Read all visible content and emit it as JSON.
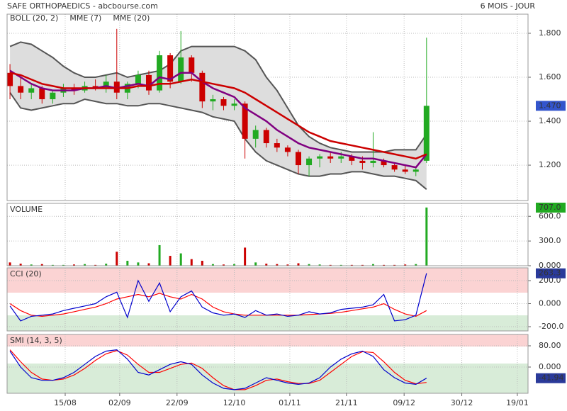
{
  "title": "SAFE ORTHOPAEDICS - abcbourse.com",
  "period": "6 MOIS - JOUR",
  "chart_data": [
    {
      "type": "candlestick",
      "up_color": "#22aa22",
      "down_color": "#cc0000",
      "open": [
        1.62,
        1.56,
        1.53,
        1.55,
        1.5,
        1.53,
        1.55,
        1.54,
        1.56,
        1.55,
        1.58,
        1.53,
        1.57,
        1.61,
        1.54,
        1.7,
        1.58,
        1.69,
        1.62,
        1.49,
        1.5,
        1.47,
        1.48,
        1.32,
        1.36,
        1.3,
        1.28,
        1.26,
        1.2,
        1.23,
        1.24,
        1.23,
        1.24,
        1.22,
        1.21,
        1.22,
        1.2,
        1.18,
        1.17,
        1.22
      ],
      "high": [
        1.66,
        1.6,
        1.57,
        1.56,
        1.54,
        1.57,
        1.57,
        1.58,
        1.59,
        1.61,
        1.82,
        1.58,
        1.63,
        1.63,
        1.72,
        1.71,
        1.81,
        1.7,
        1.63,
        1.52,
        1.51,
        1.5,
        1.49,
        1.38,
        1.37,
        1.32,
        1.29,
        1.27,
        1.24,
        1.25,
        1.26,
        1.26,
        1.25,
        1.24,
        1.35,
        1.23,
        1.21,
        1.2,
        1.19,
        1.78
      ],
      "low": [
        1.5,
        1.5,
        1.5,
        1.48,
        1.48,
        1.51,
        1.52,
        1.53,
        1.54,
        1.53,
        1.5,
        1.5,
        1.55,
        1.52,
        1.53,
        1.55,
        1.57,
        1.58,
        1.46,
        1.45,
        1.45,
        1.45,
        1.23,
        1.28,
        1.28,
        1.26,
        1.24,
        1.16,
        1.15,
        1.19,
        1.21,
        1.21,
        1.2,
        1.18,
        1.19,
        1.19,
        1.17,
        1.16,
        1.15,
        1.21
      ],
      "close": [
        1.56,
        1.53,
        1.55,
        1.5,
        1.53,
        1.55,
        1.54,
        1.56,
        1.55,
        1.58,
        1.53,
        1.57,
        1.61,
        1.54,
        1.7,
        1.58,
        1.69,
        1.62,
        1.49,
        1.5,
        1.47,
        1.48,
        1.32,
        1.36,
        1.3,
        1.28,
        1.26,
        1.2,
        1.23,
        1.24,
        1.23,
        1.24,
        1.22,
        1.21,
        1.22,
        1.2,
        1.18,
        1.17,
        1.18,
        1.47
      ],
      "close_label": "1.470",
      "series": [
        {
          "name": "BOLL (20, 2)",
          "color": "#555555",
          "fill": "#dddddd",
          "upper": [
            1.74,
            1.76,
            1.75,
            1.72,
            1.69,
            1.65,
            1.62,
            1.6,
            1.6,
            1.61,
            1.62,
            1.6,
            1.61,
            1.62,
            1.63,
            1.66,
            1.72,
            1.74,
            1.74,
            1.74,
            1.74,
            1.74,
            1.72,
            1.68,
            1.6,
            1.54,
            1.46,
            1.38,
            1.33,
            1.3,
            1.28,
            1.27,
            1.26,
            1.26,
            1.26,
            1.26,
            1.27,
            1.27,
            1.27,
            1.34
          ],
          "lower": [
            1.53,
            1.46,
            1.45,
            1.46,
            1.47,
            1.48,
            1.48,
            1.5,
            1.49,
            1.48,
            1.48,
            1.47,
            1.47,
            1.48,
            1.48,
            1.47,
            1.46,
            1.45,
            1.44,
            1.42,
            1.41,
            1.4,
            1.32,
            1.26,
            1.22,
            1.2,
            1.18,
            1.16,
            1.15,
            1.15,
            1.16,
            1.16,
            1.17,
            1.17,
            1.16,
            1.15,
            1.15,
            1.14,
            1.13,
            1.09
          ]
        },
        {
          "name": "MME (7)",
          "color": "#800080",
          "values": [
            1.63,
            1.6,
            1.57,
            1.55,
            1.54,
            1.54,
            1.54,
            1.55,
            1.55,
            1.56,
            1.55,
            1.56,
            1.57,
            1.56,
            1.6,
            1.59,
            1.62,
            1.62,
            1.58,
            1.55,
            1.53,
            1.51,
            1.46,
            1.43,
            1.4,
            1.36,
            1.33,
            1.3,
            1.28,
            1.27,
            1.26,
            1.25,
            1.24,
            1.23,
            1.23,
            1.22,
            1.21,
            1.2,
            1.19,
            1.25
          ]
        },
        {
          "name": "MME (20)",
          "color": "#cc0000",
          "values": [
            1.62,
            1.61,
            1.59,
            1.57,
            1.56,
            1.55,
            1.55,
            1.55,
            1.55,
            1.55,
            1.55,
            1.55,
            1.56,
            1.56,
            1.57,
            1.57,
            1.58,
            1.59,
            1.58,
            1.57,
            1.56,
            1.55,
            1.53,
            1.5,
            1.47,
            1.44,
            1.41,
            1.38,
            1.35,
            1.33,
            1.31,
            1.3,
            1.29,
            1.28,
            1.27,
            1.26,
            1.25,
            1.24,
            1.23,
            1.25
          ]
        }
      ],
      "ylim": [
        1.039,
        1.887
      ],
      "yticks": [
        {
          "value": 1.2,
          "label": "1.200"
        },
        {
          "value": 1.4,
          "label": "1.400"
        },
        {
          "value": 1.6,
          "label": "1.600"
        },
        {
          "value": 1.8,
          "label": "1.800"
        }
      ],
      "grid": true
    },
    {
      "type": "bar",
      "title": "VOLUME",
      "values": [
        40,
        25,
        15,
        20,
        10,
        10,
        15,
        20,
        10,
        25,
        170,
        60,
        40,
        30,
        250,
        120,
        150,
        80,
        60,
        20,
        15,
        20,
        220,
        40,
        25,
        20,
        15,
        30,
        20,
        15,
        10,
        10,
        10,
        10,
        20,
        10,
        10,
        15,
        20,
        707
      ],
      "last_label": "707.0",
      "ylim": [
        0,
        757
      ],
      "yticks": [
        {
          "value": 0,
          "label": "0.000"
        },
        {
          "value": 300,
          "label": "300.0"
        },
        {
          "value": 600,
          "label": "600.0"
        }
      ],
      "grid": true
    },
    {
      "type": "line",
      "title": "CCI (20)",
      "series": [
        {
          "color": "#0000cc",
          "values": [
            -20,
            -150,
            -110,
            -100,
            -90,
            -60,
            -40,
            -20,
            0,
            60,
            100,
            -120,
            200,
            20,
            180,
            -70,
            60,
            110,
            -30,
            -80,
            -100,
            -90,
            -120,
            -60,
            -100,
            -90,
            -110,
            -100,
            -70,
            -90,
            -80,
            -50,
            -40,
            -30,
            -10,
            80,
            -150,
            -140,
            -100,
            263.3
          ]
        },
        {
          "color": "#ff0000",
          "values": [
            0,
            -60,
            -100,
            -110,
            -100,
            -90,
            -70,
            -50,
            -30,
            0,
            40,
            60,
            80,
            60,
            90,
            60,
            40,
            80,
            40,
            -30,
            -70,
            -90,
            -100,
            -100,
            -100,
            -100,
            -100,
            -100,
            -95,
            -90,
            -85,
            -75,
            -60,
            -45,
            -30,
            0,
            -50,
            -90,
            -110,
            -60
          ]
        }
      ],
      "last_label": "263.3",
      "ylim": [
        -237,
        311
      ],
      "yticks": [
        {
          "value": -200,
          "label": "-200.0"
        },
        {
          "value": 0,
          "label": "0.000"
        },
        {
          "value": 200,
          "label": "200.0"
        }
      ],
      "grid": true
    },
    {
      "type": "line",
      "title": "SMI (14, 3, 5)",
      "series": [
        {
          "color": "#0000cc",
          "values": [
            60,
            0,
            -40,
            -50,
            -50,
            -40,
            -20,
            10,
            40,
            60,
            65,
            30,
            -20,
            -30,
            -10,
            10,
            20,
            10,
            -30,
            -60,
            -80,
            -85,
            -80,
            -60,
            -40,
            -50,
            -60,
            -65,
            -60,
            -40,
            0,
            30,
            50,
            60,
            40,
            -10,
            -40,
            -60,
            -65,
            -41.94
          ]
        },
        {
          "color": "#ff0000",
          "values": [
            65,
            20,
            -20,
            -45,
            -50,
            -45,
            -30,
            -5,
            25,
            50,
            62,
            45,
            10,
            -20,
            -20,
            -5,
            10,
            15,
            -5,
            -40,
            -70,
            -85,
            -85,
            -70,
            -50,
            -45,
            -55,
            -62,
            -62,
            -50,
            -20,
            10,
            40,
            58,
            55,
            20,
            -20,
            -50,
            -63,
            -58
          ]
        }
      ],
      "last_label": "-41.94",
      "ylim": [
        -98.7,
        122.7
      ],
      "yticks": [
        {
          "value": 0,
          "label": "0.000"
        },
        {
          "value": 80,
          "label": "80.00"
        }
      ],
      "grid": true,
      "xlim": [
        -0.27,
        48.5
      ],
      "xticks": [
        {
          "value": 5.17,
          "label": "15/08"
        },
        {
          "value": 10.27,
          "label": "02/09"
        },
        {
          "value": 15.64,
          "label": "22/09"
        },
        {
          "value": 21.0,
          "label": "12/10"
        },
        {
          "value": 26.2,
          "label": "01/11"
        },
        {
          "value": 31.5,
          "label": "21/11"
        },
        {
          "value": 36.9,
          "label": "09/12"
        },
        {
          "value": 42.3,
          "label": "30/12"
        },
        {
          "value": 47.5,
          "label": "19/01"
        }
      ]
    }
  ]
}
